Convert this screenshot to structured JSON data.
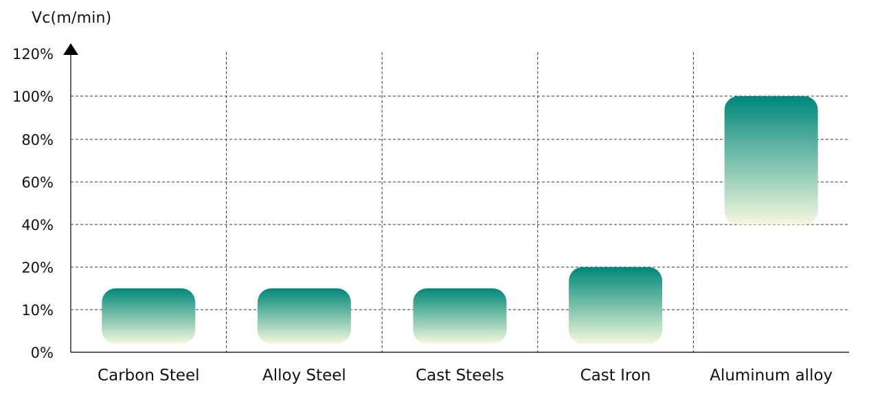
{
  "chart_data": {
    "type": "bar",
    "ylabel": "Vc(m/min)",
    "xlabel": "",
    "categories": [
      "Carbon Steel",
      "Alloy Steel",
      "Cast Steels",
      "Cast Iron",
      "Aluminum alloy"
    ],
    "ranges": [
      {
        "category": "Carbon Steel",
        "low": 2,
        "high": 15
      },
      {
        "category": "Alloy Steel",
        "low": 2,
        "high": 15
      },
      {
        "category": "Cast Steels",
        "low": 2,
        "high": 15
      },
      {
        "category": "Cast Iron",
        "low": 2,
        "high": 20
      },
      {
        "category": "Aluminum alloy",
        "low": 40,
        "high": 100
      }
    ],
    "ylim": [
      0,
      120
    ],
    "yticks": [
      "0%",
      "10%",
      "20%",
      "40%",
      "60%",
      "80%",
      "100%",
      "120%"
    ],
    "ytick_values": [
      0,
      10,
      20,
      40,
      60,
      80,
      100,
      120
    ],
    "grid": true,
    "colors": {
      "bar_top": "#00877a",
      "bar_bottom": "#f3f8dc",
      "grid": "#333333",
      "axis": "#222222"
    }
  }
}
